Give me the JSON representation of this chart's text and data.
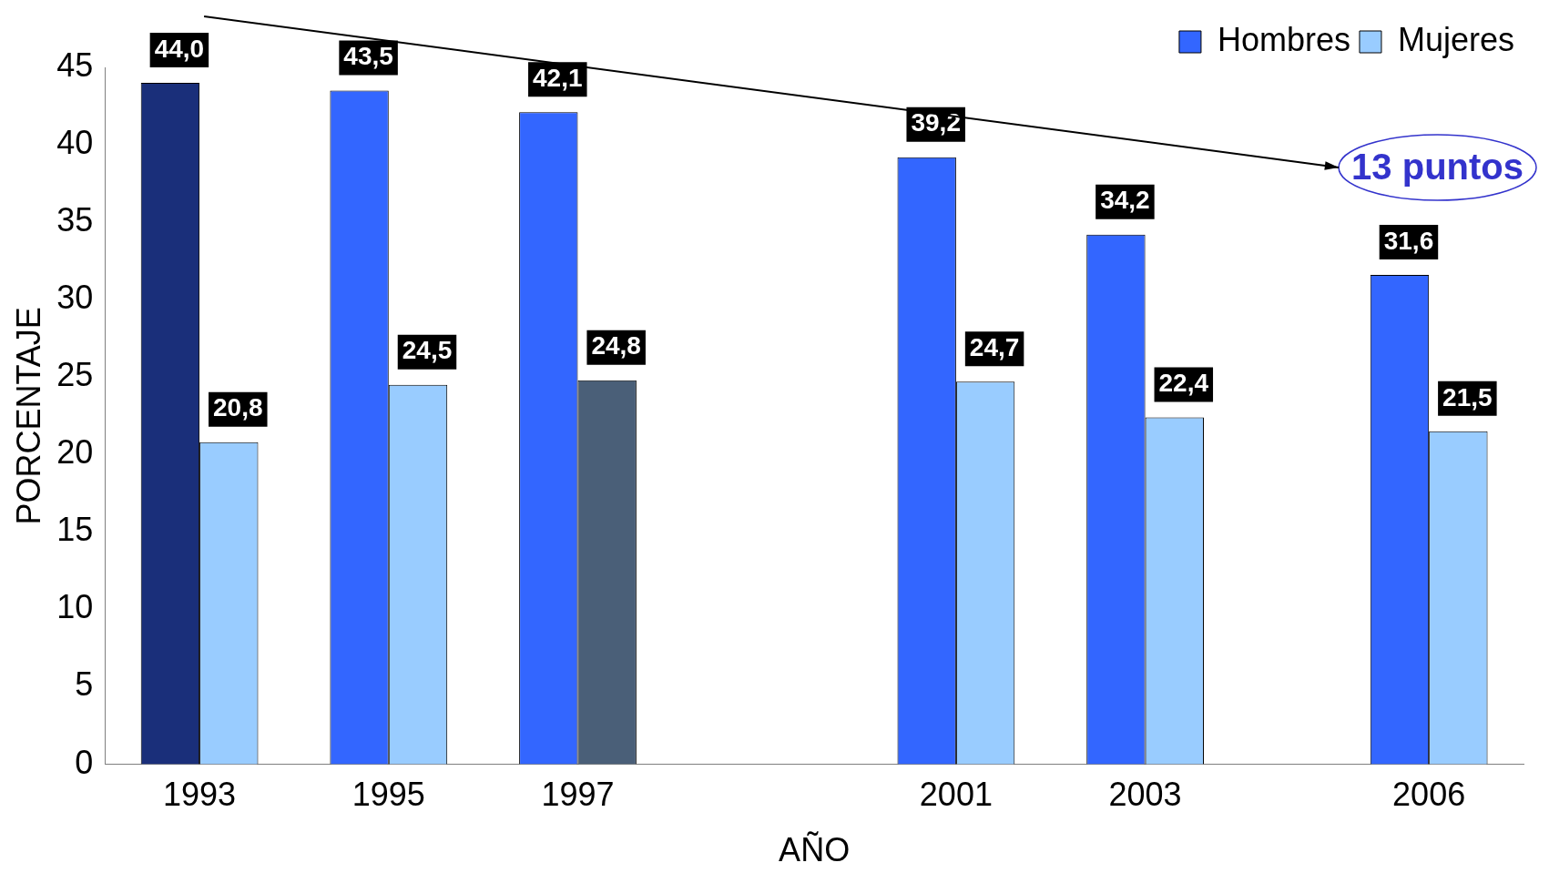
{
  "chart_data": {
    "type": "bar",
    "xlabel": "AÑO",
    "ylabel": "PORCENTAJE",
    "x": [
      1993,
      1995,
      1997,
      2001,
      2003,
      2006
    ],
    "xlim": [
      1992,
      2007
    ],
    "xticks": [
      1993,
      1995,
      1997,
      2001,
      2003,
      2006
    ],
    "ylim": [
      0,
      45
    ],
    "yticks": [
      0,
      5,
      10,
      15,
      20,
      25,
      30,
      35,
      40,
      45
    ],
    "series": [
      {
        "name": "Hombres",
        "color": "#3366ff",
        "colors": [
          "#1a2f7a",
          "#3366ff",
          "#3366ff",
          "#3366ff",
          "#3366ff",
          "#3366ff"
        ],
        "values": [
          44.0,
          43.5,
          42.1,
          39.2,
          34.2,
          31.6
        ],
        "value_labels": [
          "44,0",
          "43,5",
          "42,1",
          "39,2",
          "34,2",
          "31,6"
        ]
      },
      {
        "name": "Mujeres",
        "color": "#99ccff",
        "colors": [
          "#99ccff",
          "#99ccff",
          "#4a5f78",
          "#99ccff",
          "#99ccff",
          "#99ccff"
        ],
        "values": [
          20.8,
          24.5,
          24.8,
          24.7,
          22.4,
          21.5
        ],
        "value_labels": [
          "20,8",
          "24,5",
          "24,8",
          "24,7",
          "22,4",
          "21,5"
        ]
      }
    ],
    "annotations": [
      "13 puntos"
    ],
    "legend": "top right",
    "grid": false
  }
}
